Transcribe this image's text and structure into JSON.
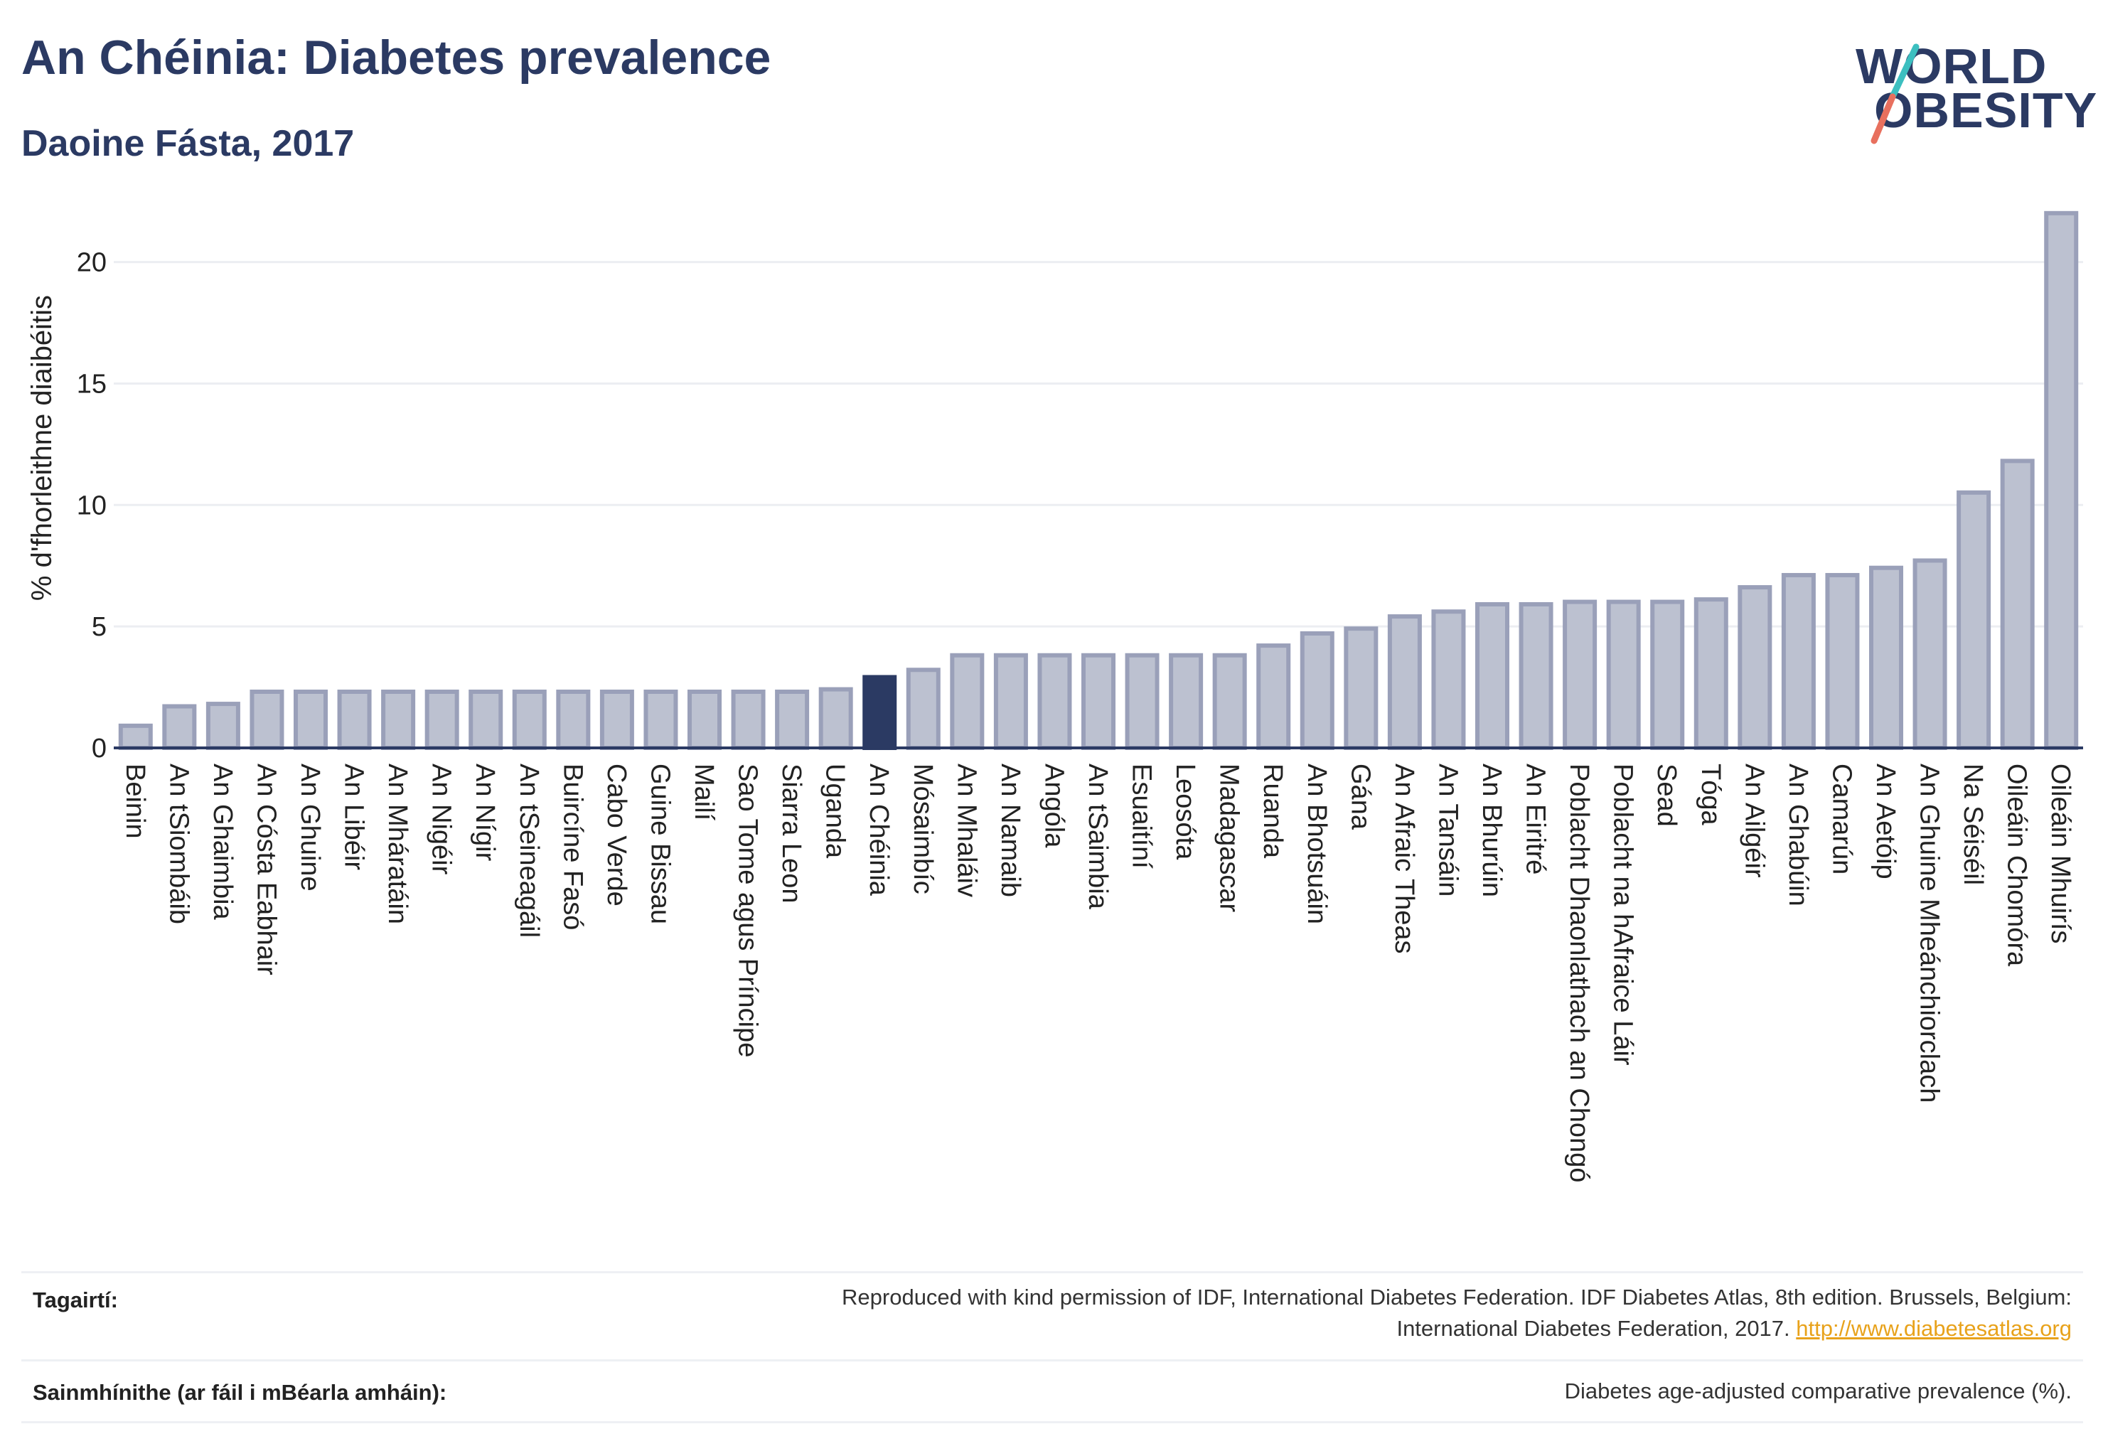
{
  "header": {
    "title": "An Chéinia: Diabetes prevalence",
    "subtitle": "Daoine Fásta, 2017"
  },
  "logo": {
    "line1": "WORLD",
    "line2": "OBESITY"
  },
  "chart_data": {
    "type": "bar",
    "title": "An Chéinia: Diabetes prevalence",
    "subtitle": "Daoine Fásta, 2017",
    "ylabel": "% d'fhorleithne diaibéitis",
    "xlabel": "",
    "ylim": [
      0,
      22.3
    ],
    "yticks": [
      0,
      5,
      10,
      15,
      20
    ],
    "grid": true,
    "highlight": "An Chéinia",
    "colors": {
      "bar": "#bcc1d0",
      "bar_edge": "#9aa0b9",
      "highlight": "#2b3a63",
      "axis": "#2b3a63",
      "grid": "#eceef2"
    },
    "categories": [
      "Beinin",
      "An tSiombáib",
      "An Ghaimbia",
      "An Cósta Eabhair",
      "An Ghuine",
      "An Libéir",
      "An Mháratáin",
      "An Nigéir",
      "An Nígir",
      "An tSeineagáil",
      "Buircíne Fasó",
      "Cabo Verde",
      "Guine Bissau",
      "Mailí",
      "Sao Tome agus Príncipe",
      "Siarra Leon",
      "Uganda",
      "An Chéinia",
      "Mósaimbíc",
      "An Mhaláiv",
      "An Namaib",
      "Angóla",
      "An tSaimbia",
      "Esuaitíní",
      "Leosóta",
      "Madagascar",
      "Ruanda",
      "An Bhotsuáin",
      "Gána",
      "An Afraic Theas",
      "An Tansáin",
      "An Bhurúin",
      "An Eiritré",
      "Poblacht Dhaonlathach an Chongó",
      "Poblacht na hAfraice Láir",
      "Sead",
      "Tóga",
      "An Ailgéir",
      "An Ghabúin",
      "Camarún",
      "An Aetóip",
      "An Ghuine Mheánchiorclach",
      "Na Séiséil",
      "Oileáin Chomóra",
      "Oileáin Mhuirís"
    ],
    "values": [
      1.0,
      1.8,
      1.9,
      2.4,
      2.4,
      2.4,
      2.4,
      2.4,
      2.4,
      2.4,
      2.4,
      2.4,
      2.4,
      2.4,
      2.4,
      2.4,
      2.5,
      3.0,
      3.3,
      3.9,
      3.9,
      3.9,
      3.9,
      3.9,
      3.9,
      3.9,
      4.3,
      4.8,
      5.0,
      5.5,
      5.7,
      6.0,
      6.0,
      6.1,
      6.1,
      6.1,
      6.2,
      6.7,
      7.2,
      7.2,
      7.5,
      7.8,
      10.6,
      11.9,
      22.1
    ]
  },
  "footer": {
    "references_label": "Tagairtí:",
    "references_text_1": "Reproduced with kind permission of IDF, International Diabetes Federation. IDF Diabetes Atlas, 8th edition. Brussels, Belgium:",
    "references_text_2": "International Diabetes Federation, 2017.",
    "references_link": "http://www.diabetesatlas.org",
    "definitions_label": "Sainmhínithe (ar fáil i mBéarla amháin):",
    "definitions_text": "Diabetes age-adjusted comparative prevalence (%)."
  }
}
